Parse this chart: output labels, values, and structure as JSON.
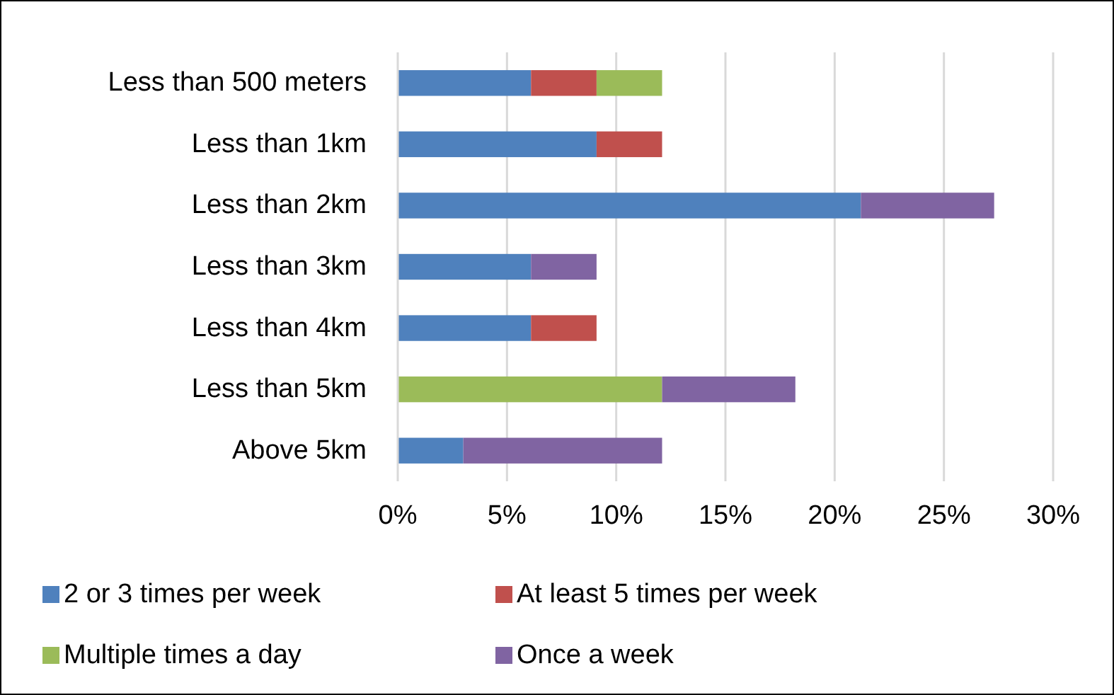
{
  "chart_data": {
    "type": "bar",
    "orientation": "horizontal",
    "stacked": true,
    "categories": [
      "Less than 500 meters",
      "Less than 1km",
      "Less than 2km",
      "Less than 3km",
      "Less than 4km",
      "Less than 5km",
      "Above 5km"
    ],
    "series": [
      {
        "name": "2 or 3 times per week",
        "color": "#4f81bd",
        "values": [
          6.1,
          9.1,
          21.2,
          6.1,
          6.1,
          null,
          3.0
        ]
      },
      {
        "name": "At least 5 times per week",
        "color": "#c0504d",
        "values": [
          3.0,
          3.0,
          null,
          null,
          3.0,
          null,
          null
        ]
      },
      {
        "name": "Multiple times a day",
        "color": "#9bbb59",
        "values": [
          3.0,
          null,
          null,
          null,
          null,
          12.1,
          null
        ]
      },
      {
        "name": "Once a week",
        "color": "#8064a2",
        "values": [
          null,
          null,
          6.1,
          3.0,
          null,
          6.1,
          9.1
        ]
      }
    ],
    "xlim": [
      0,
      30
    ],
    "xticks": [
      {
        "value": 0,
        "label": "0%"
      },
      {
        "value": 5,
        "label": "5%"
      },
      {
        "value": 10,
        "label": "10%"
      },
      {
        "value": 15,
        "label": "15%"
      },
      {
        "value": 20,
        "label": "20%"
      },
      {
        "value": 25,
        "label": "25%"
      },
      {
        "value": 30,
        "label": "30%"
      }
    ],
    "grid": "x",
    "legend": "bottom"
  }
}
